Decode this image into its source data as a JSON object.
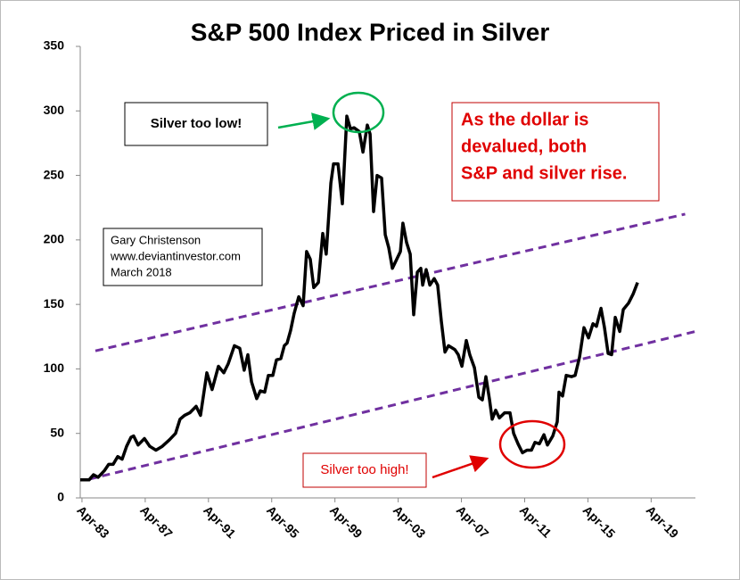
{
  "chart_data": {
    "type": "line",
    "title": "S&P 500 Index Priced in Silver",
    "x": [
      1983.14,
      1983.7,
      1983.98,
      1984.27,
      1984.66,
      1984.94,
      1985.22,
      1985.51,
      1985.79,
      1986.07,
      1986.35,
      1986.52,
      1986.8,
      1987.2,
      1987.54,
      1987.93,
      1988.33,
      1988.78,
      1989.17,
      1989.45,
      1989.74,
      1990.07,
      1990.47,
      1990.75,
      1991.15,
      1991.48,
      1991.88,
      1992.22,
      1992.5,
      1992.89,
      1993.23,
      1993.51,
      1993.74,
      1993.97,
      1994.3,
      1994.53,
      1994.81,
      1995.04,
      1995.32,
      1995.55,
      1995.83,
      1996.05,
      1996.22,
      1996.45,
      1996.67,
      1996.96,
      1997.24,
      1997.46,
      1997.69,
      1997.91,
      1998.2,
      1998.48,
      1998.7,
      1998.99,
      1999.16,
      1999.44,
      1999.72,
      2000.0,
      2000.23,
      2000.45,
      2000.79,
      2001.02,
      2001.3,
      2001.47,
      2001.69,
      2001.92,
      2002.2,
      2002.43,
      2002.65,
      2002.88,
      2003.16,
      2003.39,
      2003.55,
      2003.78,
      2004.01,
      2004.23,
      2004.46,
      2004.68,
      2004.8,
      2005.02,
      2005.25,
      2005.53,
      2005.75,
      2005.98,
      2006.21,
      2006.43,
      2006.83,
      2007.05,
      2007.28,
      2007.56,
      2007.78,
      2008.07,
      2008.35,
      2008.57,
      2008.8,
      2009.03,
      2009.19,
      2009.42,
      2009.65,
      2009.98,
      2010.32,
      2010.55,
      2010.83,
      2011.11,
      2011.39,
      2011.68,
      2011.9,
      2012.18,
      2012.47,
      2012.69,
      2013.03,
      2013.31,
      2013.42,
      2013.65,
      2013.88,
      2014.21,
      2014.44,
      2014.72,
      2015.0,
      2015.29,
      2015.57,
      2015.79,
      2016.08,
      2016.3,
      2016.53,
      2016.75,
      2016.98,
      2017.26,
      2017.49,
      2017.82,
      2018.11,
      2018.39
    ],
    "series": [
      {
        "color": "#000000",
        "values": [
          14,
          14,
          18,
          16,
          21,
          26,
          26,
          32,
          30,
          40,
          47,
          48,
          41,
          46,
          40,
          37,
          40,
          45,
          50,
          61,
          64,
          66,
          71,
          64,
          97,
          84,
          102,
          97,
          104,
          118,
          116,
          99,
          111,
          90,
          77,
          83,
          82,
          95,
          95,
          107,
          108,
          118,
          120,
          130,
          143,
          156,
          149,
          191,
          185,
          163,
          167,
          205,
          189,
          244,
          259,
          259,
          228,
          296,
          286,
          287,
          284,
          268,
          289,
          282,
          222,
          250,
          248,
          204,
          194,
          178,
          185,
          191,
          213,
          198,
          189,
          142,
          175,
          178,
          165,
          177,
          165,
          170,
          165,
          137,
          113,
          118,
          115,
          111,
          102,
          122,
          111,
          101,
          78,
          76,
          94,
          76,
          61,
          68,
          62,
          66,
          66,
          50,
          42,
          35,
          37,
          37,
          43,
          42,
          49,
          41,
          48,
          59,
          82,
          79,
          95,
          94,
          95,
          109,
          132,
          124,
          135,
          133,
          147,
          132,
          112,
          111,
          140,
          129,
          146,
          151,
          158,
          167
        ]
      }
    ],
    "trendlines": [
      {
        "color": "#7030a0",
        "x": [
          1984.1,
          2021.4
        ],
        "values": [
          114,
          220
        ]
      },
      {
        "color": "#7030a0",
        "x": [
          1983.7,
          2022.05
        ],
        "values": [
          14.5,
          129
        ]
      }
    ],
    "xlim": [
      1983.14,
      2022.05
    ],
    "xticks": [
      {
        "value": 1983.25,
        "label": "Apr-83"
      },
      {
        "value": 1987.25,
        "label": "Apr-87"
      },
      {
        "value": 1991.25,
        "label": "Apr-91"
      },
      {
        "value": 1995.25,
        "label": "Apr-95"
      },
      {
        "value": 1999.25,
        "label": "Apr-99"
      },
      {
        "value": 2003.25,
        "label": "Apr-03"
      },
      {
        "value": 2007.25,
        "label": "Apr-07"
      },
      {
        "value": 2011.25,
        "label": "Apr-11"
      },
      {
        "value": 2015.25,
        "label": "Apr-15"
      },
      {
        "value": 2019.25,
        "label": "Apr-19"
      }
    ],
    "ylim": [
      0,
      350
    ],
    "yticks": [
      0,
      50,
      100,
      150,
      200,
      250,
      300,
      350
    ],
    "annotations": {
      "silver_low": "Silver too low!",
      "silver_high": "Silver too high!",
      "dollar": [
        "As the dollar is",
        "devalued, both",
        "S&P and silver rise."
      ],
      "credit": [
        "Gary Christenson",
        "www.deviantinvestor.com",
        "March 2018"
      ]
    }
  }
}
